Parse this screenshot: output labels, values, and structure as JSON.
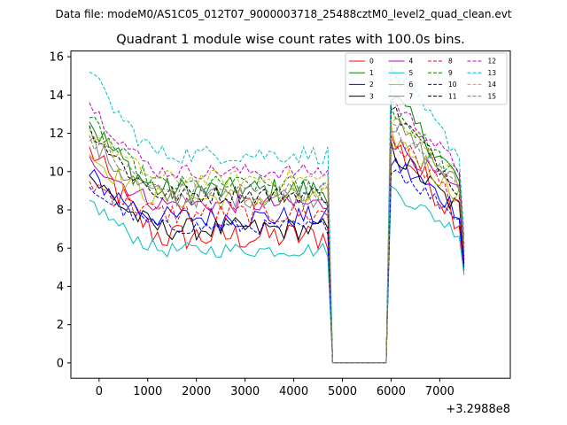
{
  "chart_data": {
    "type": "line",
    "suptitle": "Data file: modeM0/AS1C05_012T07_9000003718_25488cztM0_level2_quad_clean.evt",
    "title": "Quadrant 1 module wise count rates with 100.0s bins.",
    "x_offset_label": "+3.2988e8",
    "xlim": [
      -580,
      8450
    ],
    "ylim": [
      -0.8,
      16.3
    ],
    "xticks": [
      0,
      1000,
      2000,
      3000,
      4000,
      5000,
      6000,
      7000
    ],
    "yticks": [
      0,
      2,
      4,
      6,
      8,
      10,
      12,
      14,
      16
    ],
    "x_start": -200,
    "bin_width": 100,
    "gap_start": 4750,
    "gap_end": 5950,
    "x_end": 7500,
    "series": [
      {
        "name": "0",
        "color": "#ff0000",
        "dashed": false,
        "first": 11.3,
        "plateau": 6.6,
        "post_peak": 11.5,
        "post_end": 7.5,
        "end": 4.8,
        "wiggle": 0.8
      },
      {
        "name": "1",
        "color": "#008000",
        "dashed": false,
        "first": 12.6,
        "plateau": 9.0,
        "post_peak": 13.8,
        "post_end": 9.5,
        "end": 5.8,
        "wiggle": 0.7
      },
      {
        "name": "2",
        "color": "#0000ff",
        "dashed": false,
        "first": 9.8,
        "plateau": 7.6,
        "post_peak": 10.5,
        "post_end": 8.0,
        "end": 5.0,
        "wiggle": 0.6
      },
      {
        "name": "3",
        "color": "#000000",
        "dashed": false,
        "first": 9.8,
        "plateau": 7.0,
        "post_peak": 11.0,
        "post_end": 8.0,
        "end": 5.2,
        "wiggle": 0.6
      },
      {
        "name": "4",
        "color": "#bf00bf",
        "dashed": false,
        "first": 10.8,
        "plateau": 8.3,
        "post_peak": 11.6,
        "post_end": 8.8,
        "end": 5.4,
        "wiggle": 0.5
      },
      {
        "name": "5",
        "color": "#00bfbf",
        "dashed": false,
        "first": 8.5,
        "plateau": 5.9,
        "post_peak": 9.0,
        "post_end": 6.8,
        "end": 4.6,
        "wiggle": 0.4
      },
      {
        "name": "6",
        "color": "#bfbf00",
        "dashed": false,
        "first": 10.9,
        "plateau": 8.6,
        "post_peak": 11.8,
        "post_end": 8.8,
        "end": 5.6,
        "wiggle": 0.6
      },
      {
        "name": "7",
        "color": "#808080",
        "dashed": false,
        "first": 11.6,
        "plateau": 8.7,
        "post_peak": 12.4,
        "post_end": 9.2,
        "end": 5.9,
        "wiggle": 0.6
      },
      {
        "name": "8",
        "color": "#ff0000",
        "dashed": true,
        "first": 9.5,
        "plateau": 7.8,
        "post_peak": 11.6,
        "post_end": 8.5,
        "end": 5.6,
        "wiggle": 0.6
      },
      {
        "name": "9",
        "color": "#008000",
        "dashed": true,
        "first": 12.8,
        "plateau": 9.3,
        "post_peak": 13.3,
        "post_end": 9.6,
        "end": 6.0,
        "wiggle": 0.5
      },
      {
        "name": "10",
        "color": "#0000ff",
        "dashed": true,
        "first": 9.2,
        "plateau": 7.1,
        "post_peak": 10.2,
        "post_end": 7.6,
        "end": 5.4,
        "wiggle": 0.4
      },
      {
        "name": "11",
        "color": "#000000",
        "dashed": true,
        "first": 12.4,
        "plateau": 8.8,
        "post_peak": 13.2,
        "post_end": 9.1,
        "end": 6.0,
        "wiggle": 0.5
      },
      {
        "name": "12",
        "color": "#bf00bf",
        "dashed": true,
        "first": 13.6,
        "plateau": 10.0,
        "post_peak": 13.6,
        "post_end": 10.2,
        "end": 6.2,
        "wiggle": 0.4
      },
      {
        "name": "13",
        "color": "#00bfbf",
        "dashed": true,
        "first": 15.2,
        "plateau": 10.9,
        "post_peak": 15.2,
        "post_end": 10.9,
        "end": 6.6,
        "wiggle": 0.5
      },
      {
        "name": "14",
        "color": "#bfbf00",
        "dashed": true,
        "first": 12.2,
        "plateau": 9.6,
        "post_peak": 12.8,
        "post_end": 9.6,
        "end": 6.0,
        "wiggle": 0.5
      },
      {
        "name": "15",
        "color": "#808080",
        "dashed": true,
        "first": 11.9,
        "plateau": 9.0,
        "post_peak": 12.1,
        "post_end": 9.2,
        "end": 5.8,
        "wiggle": 0.5
      }
    ]
  }
}
